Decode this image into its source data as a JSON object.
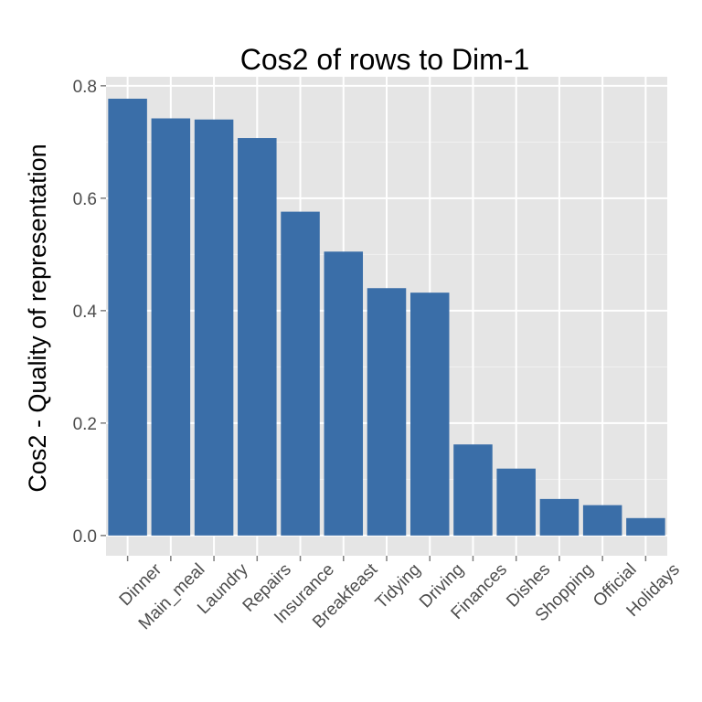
{
  "chart_data": {
    "type": "bar",
    "title": "Cos2 of rows to Dim-1",
    "xlabel": "",
    "ylabel": "Cos2 - Quality of representation",
    "categories": [
      "Dinner",
      "Main_meal",
      "Laundry",
      "Repairs",
      "Insurance",
      "Breakfeast",
      "Tidying",
      "Driving",
      "Finances",
      "Dishes",
      "Shopping",
      "Official",
      "Holidays"
    ],
    "values": [
      0.777,
      0.742,
      0.74,
      0.707,
      0.576,
      0.505,
      0.44,
      0.432,
      0.162,
      0.119,
      0.065,
      0.054,
      0.031
    ],
    "yticks": [
      "0.0",
      "0.2",
      "0.4",
      "0.6",
      "0.8"
    ],
    "ylim": [
      -0.036,
      0.816
    ],
    "grid": true,
    "colors": {
      "bar": "#3a6ea8",
      "panel": "#e5e5e5",
      "grid_major": "#ffffff",
      "grid_minor": "#f2f2f2"
    }
  }
}
